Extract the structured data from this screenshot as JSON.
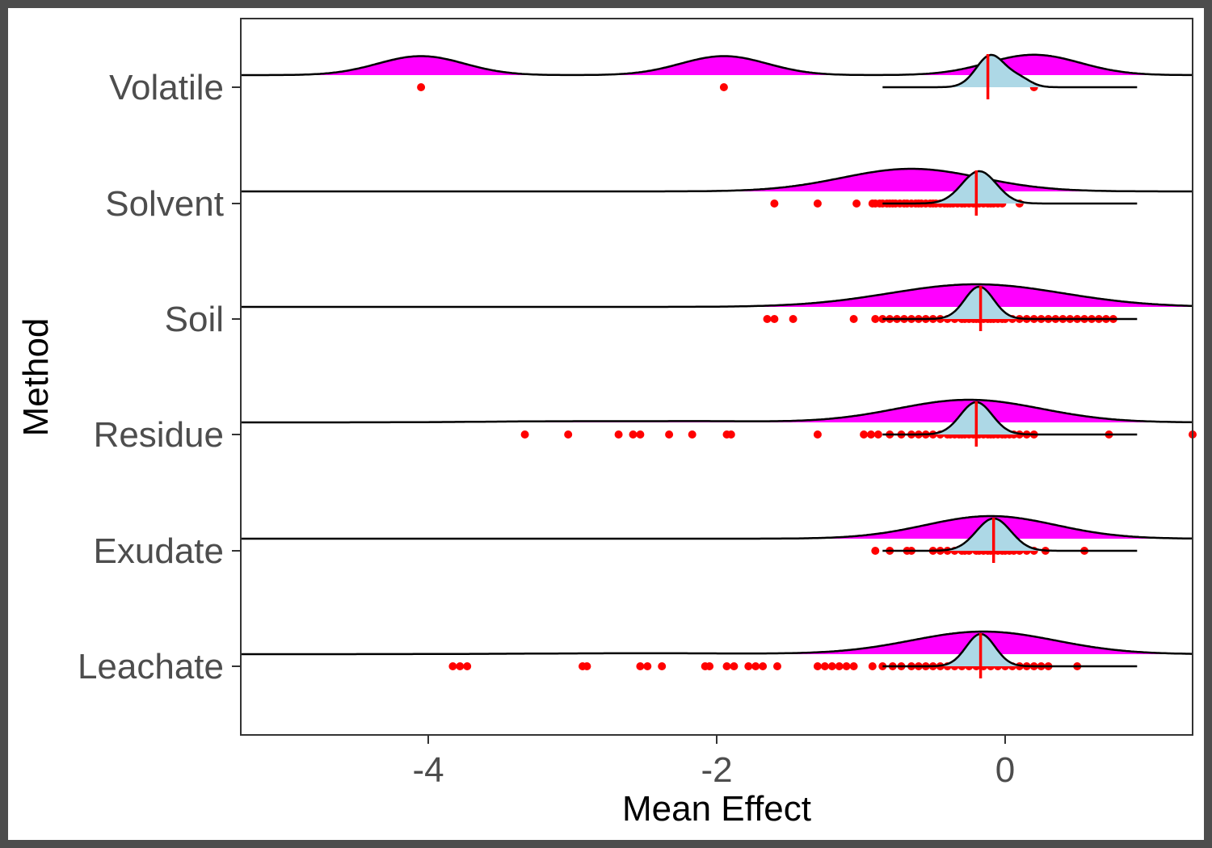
{
  "chart_data": {
    "type": "ridgeline",
    "title": "",
    "xlabel": "Mean Effect",
    "ylabel": "Method",
    "xlim": [
      -5.3,
      1.3
    ],
    "xticks": [
      -4,
      -2,
      0
    ],
    "xtick_labels": [
      "-4",
      "-2",
      "0"
    ],
    "grid": false,
    "colors": {
      "raw_density": "#ff00ff",
      "mean_density": "#add8e6",
      "points": "#ff0000",
      "median_line": "#ff0000",
      "outline": "#000000"
    },
    "categories": [
      "Volatile",
      "Solvent",
      "Soil",
      "Residue",
      "Exudate",
      "Leachate"
    ],
    "series": [
      {
        "category": "Volatile",
        "points": [
          -4.05,
          -1.95,
          0.2
        ],
        "median": -0.12,
        "raw_density": [
          {
            "mu": -4.05,
            "sd": 0.3,
            "w": 0.28
          },
          {
            "mu": -1.95,
            "sd": 0.3,
            "w": 0.28
          },
          {
            "mu": 0.2,
            "sd": 0.32,
            "w": 0.3
          }
        ],
        "mean_density": [
          {
            "mu": -0.1,
            "sd": 0.1,
            "w": 0.8
          },
          {
            "mu": 0.1,
            "sd": 0.08,
            "w": 0.2
          }
        ]
      },
      {
        "category": "Solvent",
        "points": [
          -1.6,
          -1.3,
          -1.03,
          -0.92,
          -0.9,
          -0.87,
          -0.85,
          -0.82,
          -0.8,
          -0.78,
          -0.76,
          -0.73,
          -0.7,
          -0.68,
          -0.65,
          -0.62,
          -0.6,
          -0.58,
          -0.55,
          -0.52,
          -0.5,
          -0.48,
          -0.45,
          -0.42,
          -0.4,
          -0.38,
          -0.36,
          -0.33,
          -0.3,
          -0.28,
          -0.25,
          -0.22,
          -0.2,
          -0.18,
          -0.15,
          -0.12,
          -0.1,
          -0.08,
          -0.05,
          -0.02,
          0.1
        ],
        "median": -0.2,
        "raw_density": [
          {
            "mu": -0.65,
            "sd": 0.48,
            "w": 1.0
          }
        ],
        "mean_density": [
          {
            "mu": -0.18,
            "sd": 0.12,
            "w": 1.0
          }
        ]
      },
      {
        "category": "Soil",
        "points": [
          -1.65,
          -1.6,
          -1.47,
          -1.05,
          -0.9,
          -0.85,
          -0.8,
          -0.75,
          -0.7,
          -0.65,
          -0.6,
          -0.55,
          -0.5,
          -0.45,
          -0.4,
          -0.35,
          -0.3,
          -0.28,
          -0.25,
          -0.22,
          -0.2,
          -0.18,
          -0.15,
          -0.12,
          -0.1,
          -0.08,
          -0.05,
          -0.02,
          0.0,
          0.05,
          0.1,
          0.15,
          0.2,
          0.25,
          0.3,
          0.35,
          0.4,
          0.45,
          0.5,
          0.55,
          0.6,
          0.65,
          0.7,
          0.75
        ],
        "median": -0.17,
        "raw_density": [
          {
            "mu": -0.2,
            "sd": 0.6,
            "w": 1.0
          }
        ],
        "mean_density": [
          {
            "mu": -0.18,
            "sd": 0.1,
            "w": 1.0
          }
        ]
      },
      {
        "category": "Residue",
        "points": [
          -3.33,
          -3.03,
          -2.68,
          -2.58,
          -2.53,
          -2.33,
          -2.17,
          -1.93,
          -1.9,
          -1.3,
          -0.98,
          -0.93,
          -0.88,
          -0.8,
          -0.72,
          -0.65,
          -0.6,
          -0.55,
          -0.5,
          -0.45,
          -0.4,
          -0.38,
          -0.35,
          -0.32,
          -0.3,
          -0.28,
          -0.25,
          -0.22,
          -0.2,
          -0.18,
          -0.15,
          -0.12,
          -0.1,
          -0.08,
          -0.05,
          -0.02,
          0.0,
          0.03,
          0.06,
          0.1,
          0.15,
          0.2,
          0.72,
          1.3
        ],
        "median": -0.2,
        "raw_density": [
          {
            "mu": -0.25,
            "sd": 0.5,
            "w": 1.0
          },
          {
            "mu": -3.0,
            "sd": 0.6,
            "w": 0.05
          },
          {
            "mu": -2.0,
            "sd": 0.4,
            "w": 0.04
          }
        ],
        "mean_density": [
          {
            "mu": -0.2,
            "sd": 0.11,
            "w": 1.0
          }
        ]
      },
      {
        "category": "Exudate",
        "points": [
          -0.9,
          -0.8,
          -0.68,
          -0.65,
          -0.5,
          -0.45,
          -0.4,
          -0.35,
          -0.3,
          -0.28,
          -0.25,
          -0.2,
          -0.18,
          -0.15,
          -0.12,
          -0.1,
          -0.08,
          -0.05,
          -0.02,
          0.0,
          0.03,
          0.06,
          0.1,
          0.15,
          0.2,
          0.28,
          0.55
        ],
        "median": -0.08,
        "raw_density": [
          {
            "mu": -0.1,
            "sd": 0.45,
            "w": 1.0
          }
        ],
        "mean_density": [
          {
            "mu": -0.08,
            "sd": 0.12,
            "w": 1.0
          }
        ]
      },
      {
        "category": "Leachate",
        "points": [
          -3.83,
          -3.78,
          -3.73,
          -2.93,
          -2.9,
          -2.53,
          -2.48,
          -2.38,
          -2.08,
          -2.05,
          -1.93,
          -1.88,
          -1.78,
          -1.73,
          -1.68,
          -1.58,
          -1.3,
          -1.25,
          -1.2,
          -1.15,
          -1.1,
          -1.05,
          -0.92,
          -0.85,
          -0.78,
          -0.72,
          -0.65,
          -0.6,
          -0.55,
          -0.5,
          -0.45,
          -0.4,
          -0.35,
          -0.3,
          -0.25,
          -0.2,
          -0.15,
          -0.1,
          -0.05,
          0.0,
          0.05,
          0.1,
          0.15,
          0.2,
          0.25,
          0.3,
          0.5
        ],
        "median": -0.17,
        "raw_density": [
          {
            "mu": -0.15,
            "sd": 0.5,
            "w": 1.0
          },
          {
            "mu": -2.5,
            "sd": 0.8,
            "w": 0.04
          }
        ],
        "mean_density": [
          {
            "mu": -0.17,
            "sd": 0.1,
            "w": 1.0
          }
        ]
      }
    ]
  }
}
